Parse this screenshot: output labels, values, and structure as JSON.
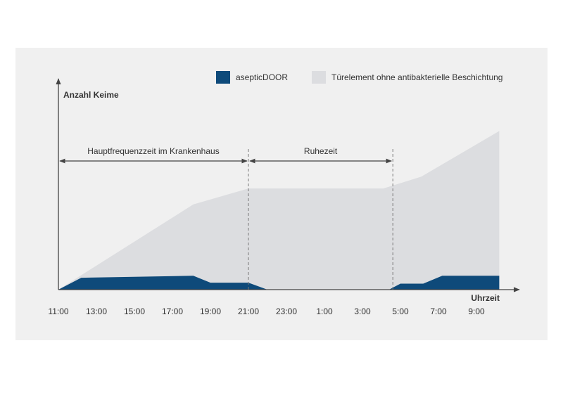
{
  "chart_data": {
    "type": "area",
    "y_label": "Anzahl Keime",
    "x_label": "Uhrzeit",
    "xlim": [
      0,
      24
    ],
    "ylim": [
      0,
      100
    ],
    "xticks": [
      {
        "value": 0,
        "label": "11:00"
      },
      {
        "value": 2,
        "label": "13:00"
      },
      {
        "value": 4,
        "label": "15:00"
      },
      {
        "value": 6,
        "label": "17:00"
      },
      {
        "value": 8,
        "label": "19:00"
      },
      {
        "value": 10,
        "label": "21:00"
      },
      {
        "value": 12,
        "label": "23:00"
      },
      {
        "value": 14,
        "label": "1:00"
      },
      {
        "value": 16,
        "label": "3:00"
      },
      {
        "value": 18,
        "label": "5:00"
      },
      {
        "value": 20,
        "label": "7:00"
      },
      {
        "value": 22,
        "label": "9:00"
      }
    ],
    "series": [
      {
        "name": "Türelement ohne antibakterielle Beschichtung",
        "color": "#dcdde0",
        "x": [
          0,
          7.1,
          10,
          17.1,
          19.1,
          23.2
        ],
        "values": [
          0,
          43,
          51,
          51,
          57,
          80
        ]
      },
      {
        "name": "asepticDOOR",
        "color": "#0e4a7a",
        "x": [
          0,
          1.2,
          7.1,
          8,
          10,
          11,
          17.4,
          18,
          19.2,
          20.2,
          23.2
        ],
        "values": [
          0,
          6,
          7,
          3.5,
          3.5,
          0,
          0,
          3,
          3,
          7,
          7
        ]
      }
    ],
    "annotations": [
      {
        "text": "Hauptfrequenzzeit im Krankenhaus",
        "from": 0,
        "to": 10
      },
      {
        "text": "Ruhezeit",
        "from": 10,
        "to": 17.6
      }
    ]
  }
}
